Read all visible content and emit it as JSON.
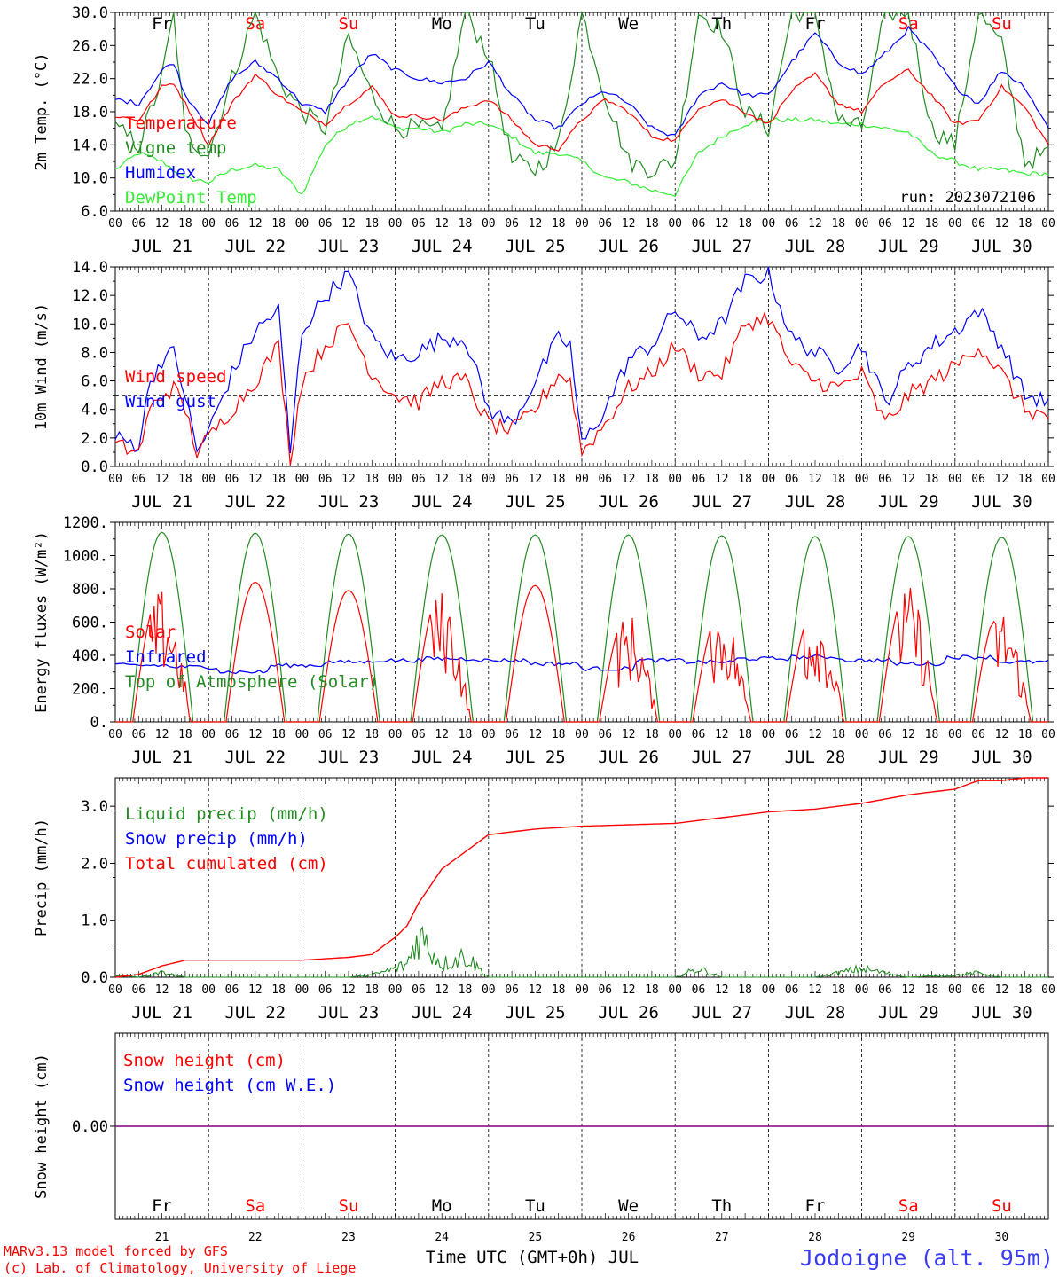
{
  "run_label": "run: 2023072106",
  "days": {
    "weekday_labels": [
      "Fr",
      "Sa",
      "Su",
      "Mo",
      "Tu",
      "We",
      "Th",
      "Fr",
      "Sa",
      "Su"
    ],
    "weekend_flags": [
      false,
      true,
      true,
      false,
      false,
      false,
      false,
      false,
      true,
      true
    ],
    "date_labels": [
      "JUL 21",
      "JUL 22",
      "JUL 23",
      "JUL 24",
      "JUL 25",
      "JUL 26",
      "JUL 27",
      "JUL 28",
      "JUL 29",
      "JUL 30"
    ],
    "day_numbers": [
      "21",
      "22",
      "23",
      "24",
      "25",
      "26",
      "27",
      "28",
      "29",
      "30"
    ],
    "hour_labels": [
      "00",
      "06",
      "12",
      "18"
    ],
    "final_hour_label": "00"
  },
  "colors": {
    "red": "#ff0000",
    "dark_green": "#228b22",
    "blue": "#0000ff",
    "light_green": "#33ee33",
    "purple": "#7f007f",
    "location_blue": "#3b3bf5"
  },
  "footer": {
    "model_line": "MARv3.13 model forced by GFS",
    "lab_line": "(c) Lab. of Climatology, University of Liege",
    "axis_title": "Time UTC (GMT+0h) JUL",
    "location": "Jodoigne (alt. 95m)"
  },
  "chart_data": [
    {
      "type": "line",
      "ylabel": "2m Temp. (°C)",
      "ylim": [
        6,
        30
      ],
      "yticks": [
        "6.0",
        "10.0",
        "14.0",
        "18.0",
        "22.0",
        "26.0",
        "30.0"
      ],
      "legend": [
        "Temperature",
        "Vigne temp",
        "Humidex",
        "DewPoint Temp"
      ],
      "x_hours": [
        0,
        6,
        12,
        15,
        18,
        24,
        30,
        36,
        42,
        48,
        54,
        60,
        66,
        72,
        78,
        84,
        90,
        96,
        102,
        108,
        114,
        120,
        126,
        132,
        138,
        144,
        150,
        156,
        162,
        168,
        174,
        180,
        186,
        192,
        198,
        204,
        210,
        216,
        222,
        228,
        234,
        240
      ],
      "series": [
        {
          "name": "Temperature",
          "color": "red",
          "values": [
            17.5,
            17,
            21,
            21.5,
            19,
            14,
            19,
            22.5,
            20,
            18,
            16.5,
            19,
            21,
            17.5,
            17.5,
            17,
            18.5,
            19.5,
            17,
            14,
            13.5,
            17,
            19.5,
            18,
            15,
            14.5,
            18.5,
            19.5,
            18,
            16.5,
            20.5,
            22.5,
            19,
            18,
            21.5,
            23,
            20,
            16.5,
            17,
            21,
            18.5,
            14
          ]
        },
        {
          "name": "Vigne temp",
          "color": "dark_green",
          "values": [
            16,
            14,
            22,
            30,
            15,
            13,
            22,
            30,
            22,
            18,
            16,
            27,
            20,
            16,
            16,
            15.5,
            30,
            25,
            12,
            11,
            14,
            30,
            20,
            12,
            11,
            12,
            30,
            28,
            18,
            16,
            30,
            30,
            17,
            16,
            30,
            30,
            16,
            14,
            30,
            26,
            12,
            13
          ]
        },
        {
          "name": "Humidex",
          "color": "blue",
          "values": [
            19.5,
            19,
            23,
            24,
            20,
            16.5,
            22,
            24,
            22,
            19,
            18,
            22,
            25,
            23,
            22,
            21.5,
            22,
            24,
            20,
            17,
            16,
            19,
            20.5,
            19,
            16,
            15,
            20,
            21.5,
            20,
            20,
            24,
            27.5,
            24,
            22.5,
            25,
            28,
            25,
            21,
            19,
            23,
            21,
            16
          ]
        },
        {
          "name": "DewPoint Temp",
          "color": "light_green",
          "values": [
            11,
            13,
            12,
            11,
            10,
            9.5,
            11,
            11.5,
            11,
            8,
            14,
            16.5,
            17.5,
            16,
            16,
            15.5,
            16.5,
            16.5,
            15,
            13,
            13,
            12,
            10,
            9.5,
            8.5,
            8,
            13,
            15,
            16.5,
            17,
            17,
            17,
            16.5,
            16.5,
            16,
            15.5,
            13,
            12,
            11,
            11,
            10.5,
            10.5
          ]
        }
      ]
    },
    {
      "type": "line",
      "ylabel": "10m Wind (m/s)",
      "ylim": [
        0,
        14
      ],
      "yticks": [
        "0.0",
        "2.0",
        "4.0",
        "6.0",
        "8.0",
        "10.0",
        "12.0",
        "14.0"
      ],
      "reference_line": 5,
      "legend": [
        "Wind speed",
        "Wind gust"
      ],
      "x_hours": [
        0,
        6,
        9,
        12,
        15,
        18,
        21,
        24,
        30,
        36,
        42,
        45,
        48,
        54,
        60,
        66,
        72,
        78,
        84,
        90,
        96,
        102,
        108,
        114,
        117,
        120,
        126,
        132,
        138,
        144,
        150,
        156,
        162,
        168,
        174,
        180,
        186,
        192,
        198,
        204,
        210,
        216,
        222,
        228,
        234,
        240
      ],
      "series": [
        {
          "name": "Wind speed",
          "color": "red",
          "values": [
            1.5,
            1,
            4,
            5,
            5.5,
            4,
            1,
            2,
            4,
            6,
            8.5,
            0.5,
            6,
            8.5,
            10,
            6.5,
            5,
            4.5,
            6,
            6,
            3,
            2.5,
            4,
            6.5,
            6,
            1,
            3,
            5.5,
            6.5,
            8.5,
            6.5,
            6.5,
            10,
            10.5,
            7,
            6,
            5.5,
            6.5,
            3,
            5,
            6,
            7,
            8.5,
            6.5,
            4,
            3.5
          ]
        },
        {
          "name": "Wind gust",
          "color": "blue",
          "values": [
            2,
            1.5,
            6,
            7.5,
            8,
            5,
            1,
            2.5,
            6.5,
            9.5,
            11,
            1,
            9.5,
            12,
            13.5,
            9,
            7.5,
            8,
            9,
            9,
            4,
            3,
            6,
            9,
            8.5,
            1.5,
            4,
            7.5,
            8.5,
            11,
            9,
            10,
            13,
            13.5,
            9,
            8,
            7,
            8.5,
            4.5,
            7,
            8.5,
            9.5,
            11,
            8.5,
            5,
            4.5
          ]
        }
      ]
    },
    {
      "type": "line",
      "ylabel": "Energy fluxes (W/m²)",
      "ylim": [
        0,
        1200
      ],
      "yticks": [
        "0.",
        "200.",
        "400.",
        "600.",
        "800.",
        "1000.",
        "1200."
      ],
      "legend": [
        "Solar",
        "Infrared",
        "Top of Atmosphere (Solar)"
      ],
      "solar_daily_peak": [
        800,
        840,
        790,
        800,
        820,
        660,
        680,
        690,
        820,
        700
      ],
      "toa_daily_peak": [
        1140,
        1135,
        1130,
        1125,
        1125,
        1125,
        1120,
        1115,
        1115,
        1110
      ],
      "infrared_hourly_avg": [
        340,
        330,
        300,
        340,
        360,
        370,
        380,
        370,
        350,
        320,
        370,
        360,
        380,
        390,
        370,
        350,
        390,
        360
      ]
    },
    {
      "type": "line",
      "ylabel": "Precip (mm/h)",
      "ylim": [
        0,
        3.5
      ],
      "yticks": [
        "0.0",
        "1.0",
        "2.0",
        "3.0"
      ],
      "legend": [
        "Liquid precip (mm/h)",
        "Snow precip (mm/h)",
        "Total cumulated (cm)"
      ],
      "x_hours": [
        0,
        6,
        12,
        18,
        24,
        48,
        60,
        66,
        72,
        75,
        78,
        84,
        90,
        96,
        102,
        108,
        120,
        144,
        150,
        156,
        168,
        180,
        192,
        204,
        216,
        222,
        228,
        234,
        240
      ],
      "series": [
        {
          "name": "Total cumulated (cm)",
          "color": "red",
          "values": [
            0,
            0.05,
            0.2,
            0.3,
            0.3,
            0.3,
            0.35,
            0.4,
            0.7,
            0.9,
            1.3,
            1.9,
            2.2,
            2.5,
            2.55,
            2.6,
            2.65,
            2.7,
            2.75,
            2.8,
            2.9,
            2.95,
            3.05,
            3.2,
            3.3,
            3.45,
            3.45,
            3.5,
            3.5
          ]
        },
        {
          "name": "Liquid precip (mm/h)",
          "color": "dark_green",
          "values": [
            0.05,
            0,
            0.1,
            0,
            0,
            0,
            0,
            0.05,
            0.2,
            0.3,
            1,
            0.3,
            0.5,
            0,
            0,
            0,
            0,
            0,
            0.2,
            0,
            0,
            0,
            0.2,
            0,
            0.05,
            0.1,
            0,
            0,
            0
          ]
        }
      ]
    },
    {
      "type": "line",
      "ylabel": "Snow height (cm)",
      "yticks": [
        "0.00"
      ],
      "legend": [
        "Snow height (cm)",
        "Snow height (cm W.E.)"
      ],
      "value": 0
    }
  ]
}
